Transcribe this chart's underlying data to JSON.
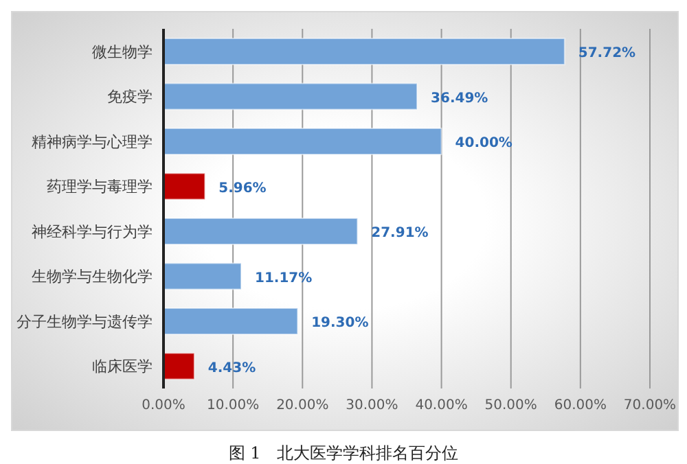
{
  "chart_data": {
    "type": "bar",
    "orientation": "horizontal",
    "title": "图 1　北大医学学科排名百分位",
    "categories": [
      "微生物学",
      "免疫学",
      "精神病学与心理学",
      "药理学与毒理学",
      "神经科学与行为学",
      "生物学与生物化学",
      "分子生物学与遗传学",
      "临床医学"
    ],
    "values": [
      57.72,
      36.49,
      40.0,
      5.96,
      27.91,
      11.17,
      19.3,
      4.43
    ],
    "colors": [
      "#72a3d8",
      "#72a3d8",
      "#72a3d8",
      "#c00000",
      "#72a3d8",
      "#72a3d8",
      "#72a3d8",
      "#c00000"
    ],
    "value_labels": [
      "57.72%",
      "36.49%",
      "40.00%",
      "5.96%",
      "27.91%",
      "11.17%",
      "19.30%",
      "4.43%"
    ],
    "xlim": [
      0,
      70
    ],
    "xticks": [
      {
        "value": 0,
        "label": "0.00%"
      },
      {
        "value": 10,
        "label": "10.00%"
      },
      {
        "value": 20,
        "label": "20.00%"
      },
      {
        "value": 30,
        "label": "30.00%"
      },
      {
        "value": 40,
        "label": "40.00%"
      },
      {
        "value": 50,
        "label": "50.00%"
      },
      {
        "value": 60,
        "label": "60.00%"
      },
      {
        "value": 70,
        "label": "70.00%"
      }
    ],
    "grid": "x",
    "legend": false
  }
}
